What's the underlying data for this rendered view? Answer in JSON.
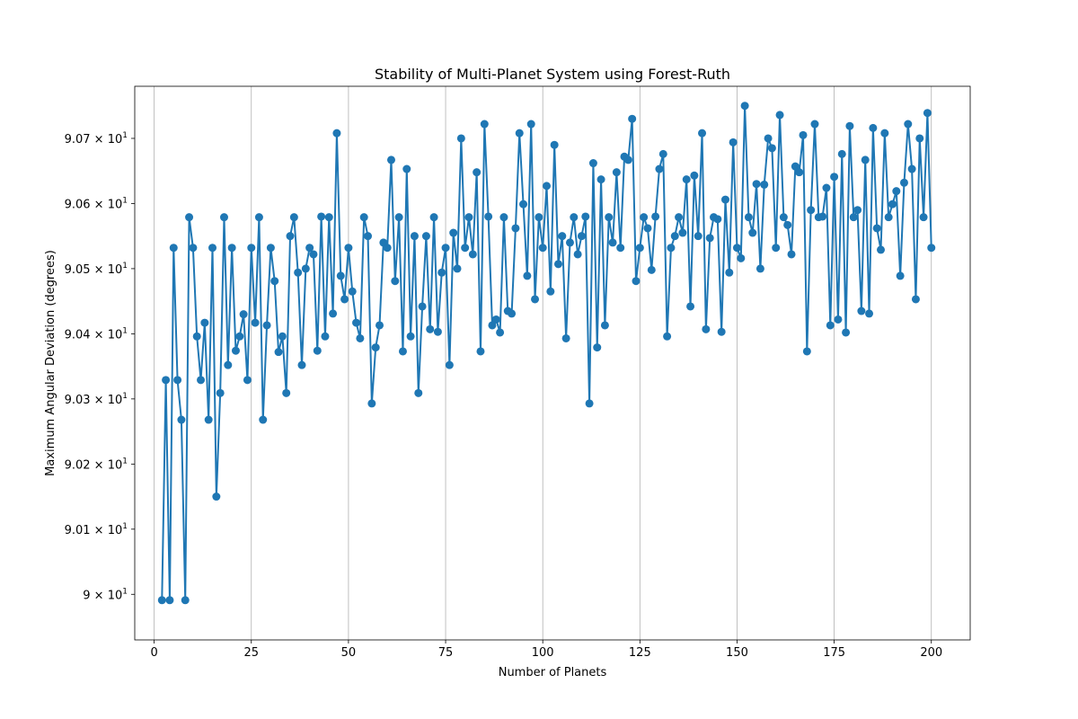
{
  "chart_data": {
    "type": "line",
    "title": "Stability of Multi-Planet System using Forest-Ruth",
    "xlabel": "Number of Planets",
    "ylabel": "Maximum Angular Deviation (degrees)",
    "xlim": [
      -5,
      210
    ],
    "ylim": [
      89.993,
      90.078
    ],
    "y_scale": "log",
    "grid": "x-axis only",
    "legend": "none",
    "color": "#1f77b4",
    "x_ticks": [
      {
        "value": 0,
        "label": "0"
      },
      {
        "value": 25,
        "label": "25"
      },
      {
        "value": 50,
        "label": "50"
      },
      {
        "value": 75,
        "label": "75"
      },
      {
        "value": 100,
        "label": "100"
      },
      {
        "value": 125,
        "label": "125"
      },
      {
        "value": 150,
        "label": "150"
      },
      {
        "value": 175,
        "label": "175"
      },
      {
        "value": 200,
        "label": "200"
      }
    ],
    "y_ticks": [
      {
        "value": 90.0,
        "mantissa": "9",
        "exponent": "1"
      },
      {
        "value": 90.01,
        "mantissa": "9.01",
        "exponent": "1"
      },
      {
        "value": 90.02,
        "mantissa": "9.02",
        "exponent": "1"
      },
      {
        "value": 90.03,
        "mantissa": "9.03",
        "exponent": "1"
      },
      {
        "value": 90.04,
        "mantissa": "9.04",
        "exponent": "1"
      },
      {
        "value": 90.05,
        "mantissa": "9.05",
        "exponent": "1"
      },
      {
        "value": 90.06,
        "mantissa": "9.06",
        "exponent": "1"
      },
      {
        "value": 90.07,
        "mantissa": "9.07",
        "exponent": "1"
      }
    ],
    "x": [
      2,
      3,
      4,
      5,
      6,
      7,
      8,
      9,
      10,
      11,
      12,
      13,
      14,
      15,
      16,
      17,
      18,
      19,
      20,
      21,
      22,
      23,
      24,
      25,
      26,
      27,
      28,
      29,
      30,
      31,
      32,
      33,
      34,
      35,
      36,
      37,
      38,
      39,
      40,
      41,
      42,
      43,
      44,
      45,
      46,
      47,
      48,
      49,
      50,
      51,
      52,
      53,
      54,
      55,
      56,
      57,
      58,
      59,
      60,
      61,
      62,
      63,
      64,
      65,
      66,
      67,
      68,
      69,
      70,
      71,
      72,
      73,
      74,
      75,
      76,
      77,
      78,
      79,
      80,
      81,
      82,
      83,
      84,
      85,
      86,
      87,
      88,
      89,
      90,
      91,
      92,
      93,
      94,
      95,
      96,
      97,
      98,
      99,
      100,
      101,
      102,
      103,
      104,
      105,
      106,
      107,
      108,
      109,
      110,
      111,
      112,
      113,
      114,
      115,
      116,
      117,
      118,
      119,
      120,
      121,
      122,
      123,
      124,
      125,
      126,
      127,
      128,
      129,
      130,
      131,
      132,
      133,
      134,
      135,
      136,
      137,
      138,
      139,
      140,
      141,
      142,
      143,
      144,
      145,
      146,
      147,
      148,
      149,
      150,
      151,
      152,
      153,
      154,
      155,
      156,
      157,
      158,
      159,
      160,
      161,
      162,
      163,
      164,
      165,
      166,
      167,
      168,
      169,
      170,
      171,
      172,
      173,
      174,
      175,
      176,
      177,
      178,
      179,
      180,
      181,
      182,
      183,
      184,
      185,
      186,
      187,
      188,
      189,
      190,
      191,
      192,
      193,
      194,
      195,
      196,
      197,
      198,
      199,
      200
    ],
    "y": [
      89.9991,
      90.0329,
      89.9991,
      90.0532,
      90.0329,
      90.0268,
      89.9991,
      90.0579,
      90.0532,
      90.0396,
      90.0329,
      90.0417,
      90.0268,
      90.0532,
      90.015,
      90.0309,
      90.0579,
      90.0352,
      90.0532,
      90.0374,
      90.0396,
      90.043,
      90.0329,
      90.0532,
      90.0417,
      90.0579,
      90.0268,
      90.0413,
      90.0532,
      90.0481,
      90.0372,
      90.0396,
      90.0309,
      90.055,
      90.0579,
      90.0494,
      90.0352,
      90.05,
      90.0532,
      90.0522,
      90.0374,
      90.058,
      90.0396,
      90.0579,
      90.0431,
      90.0708,
      90.0489,
      90.0453,
      90.0532,
      90.0465,
      90.0417,
      90.0393,
      90.0579,
      90.055,
      90.0293,
      90.0379,
      90.0413,
      90.054,
      90.0532,
      90.0667,
      90.0481,
      90.0579,
      90.0373,
      90.0653,
      90.0396,
      90.055,
      90.0309,
      90.0442,
      90.055,
      90.0407,
      90.0579,
      90.0403,
      90.0494,
      90.0532,
      90.0352,
      90.0555,
      90.05,
      90.07,
      90.0532,
      90.0579,
      90.0522,
      90.0648,
      90.0373,
      90.0722,
      90.058,
      90.0413,
      90.0422,
      90.0402,
      90.0579,
      90.0435,
      90.0431,
      90.0562,
      90.0708,
      90.0599,
      90.0489,
      90.0722,
      90.0453,
      90.0579,
      90.0532,
      90.0627,
      90.0465,
      90.069,
      90.0507,
      90.055,
      90.0393,
      90.054,
      90.0579,
      90.0522,
      90.055,
      90.058,
      90.0293,
      90.0662,
      90.0379,
      90.0637,
      90.0413,
      90.0579,
      90.054,
      90.0648,
      90.0532,
      90.0672,
      90.0667,
      90.073,
      90.0481,
      90.0532,
      90.0579,
      90.0562,
      90.0498,
      90.058,
      90.0653,
      90.0676,
      90.0396,
      90.0532,
      90.055,
      90.0579,
      90.0555,
      90.0637,
      90.0442,
      90.0643,
      90.055,
      90.0708,
      90.0407,
      90.0547,
      90.0579,
      90.0576,
      90.0403,
      90.0606,
      90.0494,
      90.0694,
      90.0532,
      90.0516,
      90.075,
      90.0579,
      90.0555,
      90.063,
      90.05,
      90.0629,
      90.07,
      90.0685,
      90.0532,
      90.0736,
      90.0579,
      90.0567,
      90.0522,
      90.0657,
      90.0648,
      90.0705,
      90.0373,
      90.059,
      90.0722,
      90.0579,
      90.058,
      90.0624,
      90.0413,
      90.0641,
      90.0422,
      90.0676,
      90.0402,
      90.0719,
      90.0579,
      90.059,
      90.0435,
      90.0667,
      90.0431,
      90.0716,
      90.0562,
      90.0529,
      90.0708,
      90.0579,
      90.0599,
      90.0619,
      90.0489,
      90.0632,
      90.0722,
      90.0653,
      90.0453,
      90.07,
      90.0579,
      90.0739,
      90.0532
    ]
  }
}
